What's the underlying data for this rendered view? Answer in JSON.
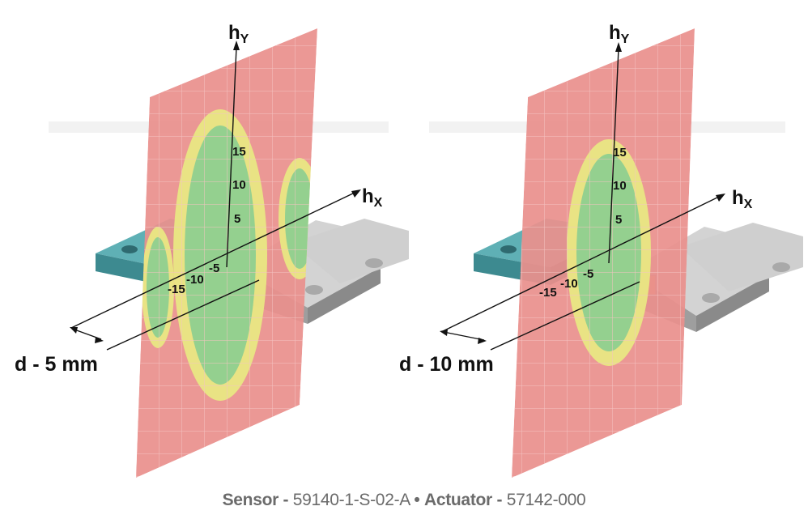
{
  "panels": [
    {
      "axis_y_label": "h",
      "axis_y_sub": "Y",
      "axis_x_label": "h",
      "axis_x_sub": "X",
      "ticks_y": [
        "15",
        "10",
        "5"
      ],
      "ticks_neg": [
        "-15",
        "-10",
        "-5"
      ],
      "distance_label": "d - 5 mm"
    },
    {
      "axis_y_label": "h",
      "axis_y_sub": "Y",
      "axis_x_label": "h",
      "axis_x_sub": "X",
      "ticks_y": [
        "15",
        "10",
        "5"
      ],
      "ticks_neg": [
        "-15",
        "-10",
        "-5"
      ],
      "distance_label": "d - 10 mm"
    }
  ],
  "caption": {
    "sensor_label": "Sensor -",
    "sensor_value": "59140-1-S-02-A",
    "separator": "•",
    "actuator_label": "Actuator -",
    "actuator_value": "57142-000"
  },
  "colors": {
    "plane_red": "#e9908d",
    "zone_yellow": "#e9e783",
    "zone_green": "#8fcf8f",
    "sensor_teal": "#4a9aa0",
    "actuator_grey": "#bdbdbd"
  }
}
